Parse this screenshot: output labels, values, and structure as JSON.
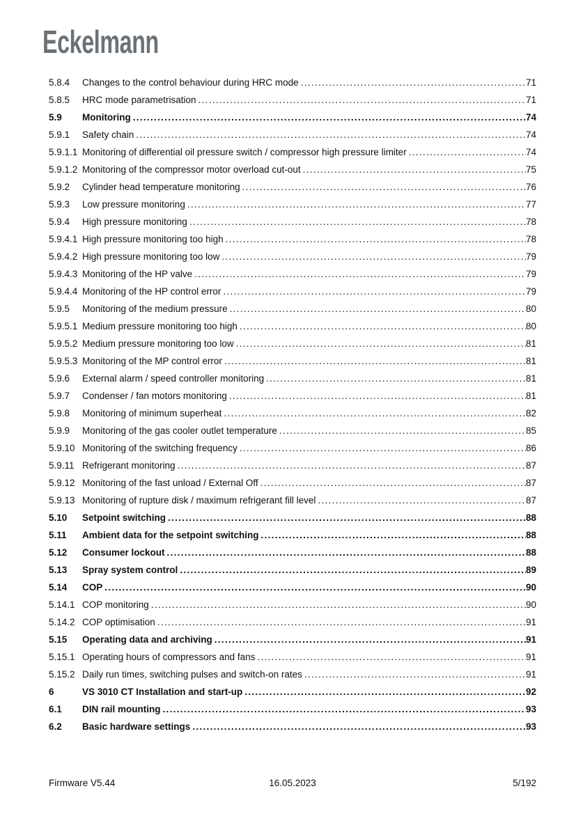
{
  "logo": {
    "text": "Eckelmann",
    "color": "#6b7277"
  },
  "toc": {
    "entries": [
      {
        "num": "5.8.4",
        "title": "Changes to the control behaviour during HRC mode",
        "page": "71",
        "bold": false
      },
      {
        "num": "5.8.5",
        "title": "HRC mode parametrisation",
        "page": "71",
        "bold": false
      },
      {
        "num": "5.9",
        "title": "Monitoring",
        "page": "74",
        "bold": true
      },
      {
        "num": "5.9.1",
        "title": "Safety chain",
        "page": "74",
        "bold": false
      },
      {
        "num": "5.9.1.1",
        "title": "Monitoring of differential oil pressure switch / compressor high pressure limiter",
        "page": "74",
        "bold": false
      },
      {
        "num": "5.9.1.2",
        "title": "Monitoring of the compressor motor overload cut-out",
        "page": "75",
        "bold": false
      },
      {
        "num": "5.9.2",
        "title": "Cylinder head temperature monitoring",
        "page": "76",
        "bold": false
      },
      {
        "num": "5.9.3",
        "title": "Low pressure monitoring",
        "page": "77",
        "bold": false
      },
      {
        "num": "5.9.4",
        "title": "High pressure monitoring",
        "page": "78",
        "bold": false
      },
      {
        "num": "5.9.4.1",
        "title": "High pressure monitoring too high",
        "page": "78",
        "bold": false
      },
      {
        "num": "5.9.4.2",
        "title": "High pressure monitoring too low",
        "page": "79",
        "bold": false
      },
      {
        "num": "5.9.4.3",
        "title": "Monitoring of the HP valve",
        "page": "79",
        "bold": false
      },
      {
        "num": "5.9.4.4",
        "title": "Monitoring of the HP control error",
        "page": "79",
        "bold": false
      },
      {
        "num": "5.9.5",
        "title": "Monitoring of the medium pressure",
        "page": "80",
        "bold": false
      },
      {
        "num": "5.9.5.1",
        "title": "Medium pressure monitoring too high",
        "page": "80",
        "bold": false
      },
      {
        "num": "5.9.5.2",
        "title": "Medium pressure monitoring too low",
        "page": "81",
        "bold": false
      },
      {
        "num": "5.9.5.3",
        "title": "Monitoring of the MP control error",
        "page": "81",
        "bold": false
      },
      {
        "num": "5.9.6",
        "title": "External alarm / speed controller monitoring",
        "page": "81",
        "bold": false
      },
      {
        "num": "5.9.7",
        "title": "Condenser / fan motors monitoring",
        "page": "81",
        "bold": false
      },
      {
        "num": "5.9.8",
        "title": "Monitoring of minimum superheat",
        "page": "82",
        "bold": false
      },
      {
        "num": "5.9.9",
        "title": "Monitoring of the gas cooler outlet temperature",
        "page": "85",
        "bold": false
      },
      {
        "num": "5.9.10",
        "title": "Monitoring of the switching frequency",
        "page": "86",
        "bold": false
      },
      {
        "num": "5.9.11",
        "title": "Refrigerant monitoring",
        "page": "87",
        "bold": false
      },
      {
        "num": "5.9.12",
        "title": "Monitoring of the fast unload / External Off",
        "page": "87",
        "bold": false
      },
      {
        "num": "5.9.13",
        "title": "Monitoring of rupture disk / maximum refrigerant fill level",
        "page": "87",
        "bold": false
      },
      {
        "num": "5.10",
        "title": "Setpoint switching",
        "page": "88",
        "bold": true
      },
      {
        "num": "5.11",
        "title": "Ambient data for the setpoint switching",
        "page": "88",
        "bold": true
      },
      {
        "num": "5.12",
        "title": "Consumer lockout",
        "page": "88",
        "bold": true
      },
      {
        "num": "5.13",
        "title": "Spray system control",
        "page": "89",
        "bold": true
      },
      {
        "num": "5.14",
        "title": "COP",
        "page": "90",
        "bold": true
      },
      {
        "num": "5.14.1",
        "title": "COP monitoring",
        "page": "90",
        "bold": false
      },
      {
        "num": "5.14.2",
        "title": "COP optimisation",
        "page": "91",
        "bold": false
      },
      {
        "num": "5.15",
        "title": "Operating data and archiving",
        "page": "91",
        "bold": true
      },
      {
        "num": "5.15.1",
        "title": "Operating hours of compressors and fans",
        "page": "91",
        "bold": false
      },
      {
        "num": "5.15.2",
        "title": "Daily run times, switching pulses and switch-on rates",
        "page": "91",
        "bold": false
      },
      {
        "num": "6",
        "title": "VS 3010 CT Installation and start-up",
        "page": "92",
        "bold": true
      },
      {
        "num": "6.1",
        "title": "DIN rail mounting",
        "page": "93",
        "bold": true
      },
      {
        "num": "6.2",
        "title": "Basic hardware settings",
        "page": "93",
        "bold": true
      }
    ]
  },
  "footer": {
    "left": "Firmware V5.44",
    "center": "16.05.2023",
    "right": "5/192"
  }
}
